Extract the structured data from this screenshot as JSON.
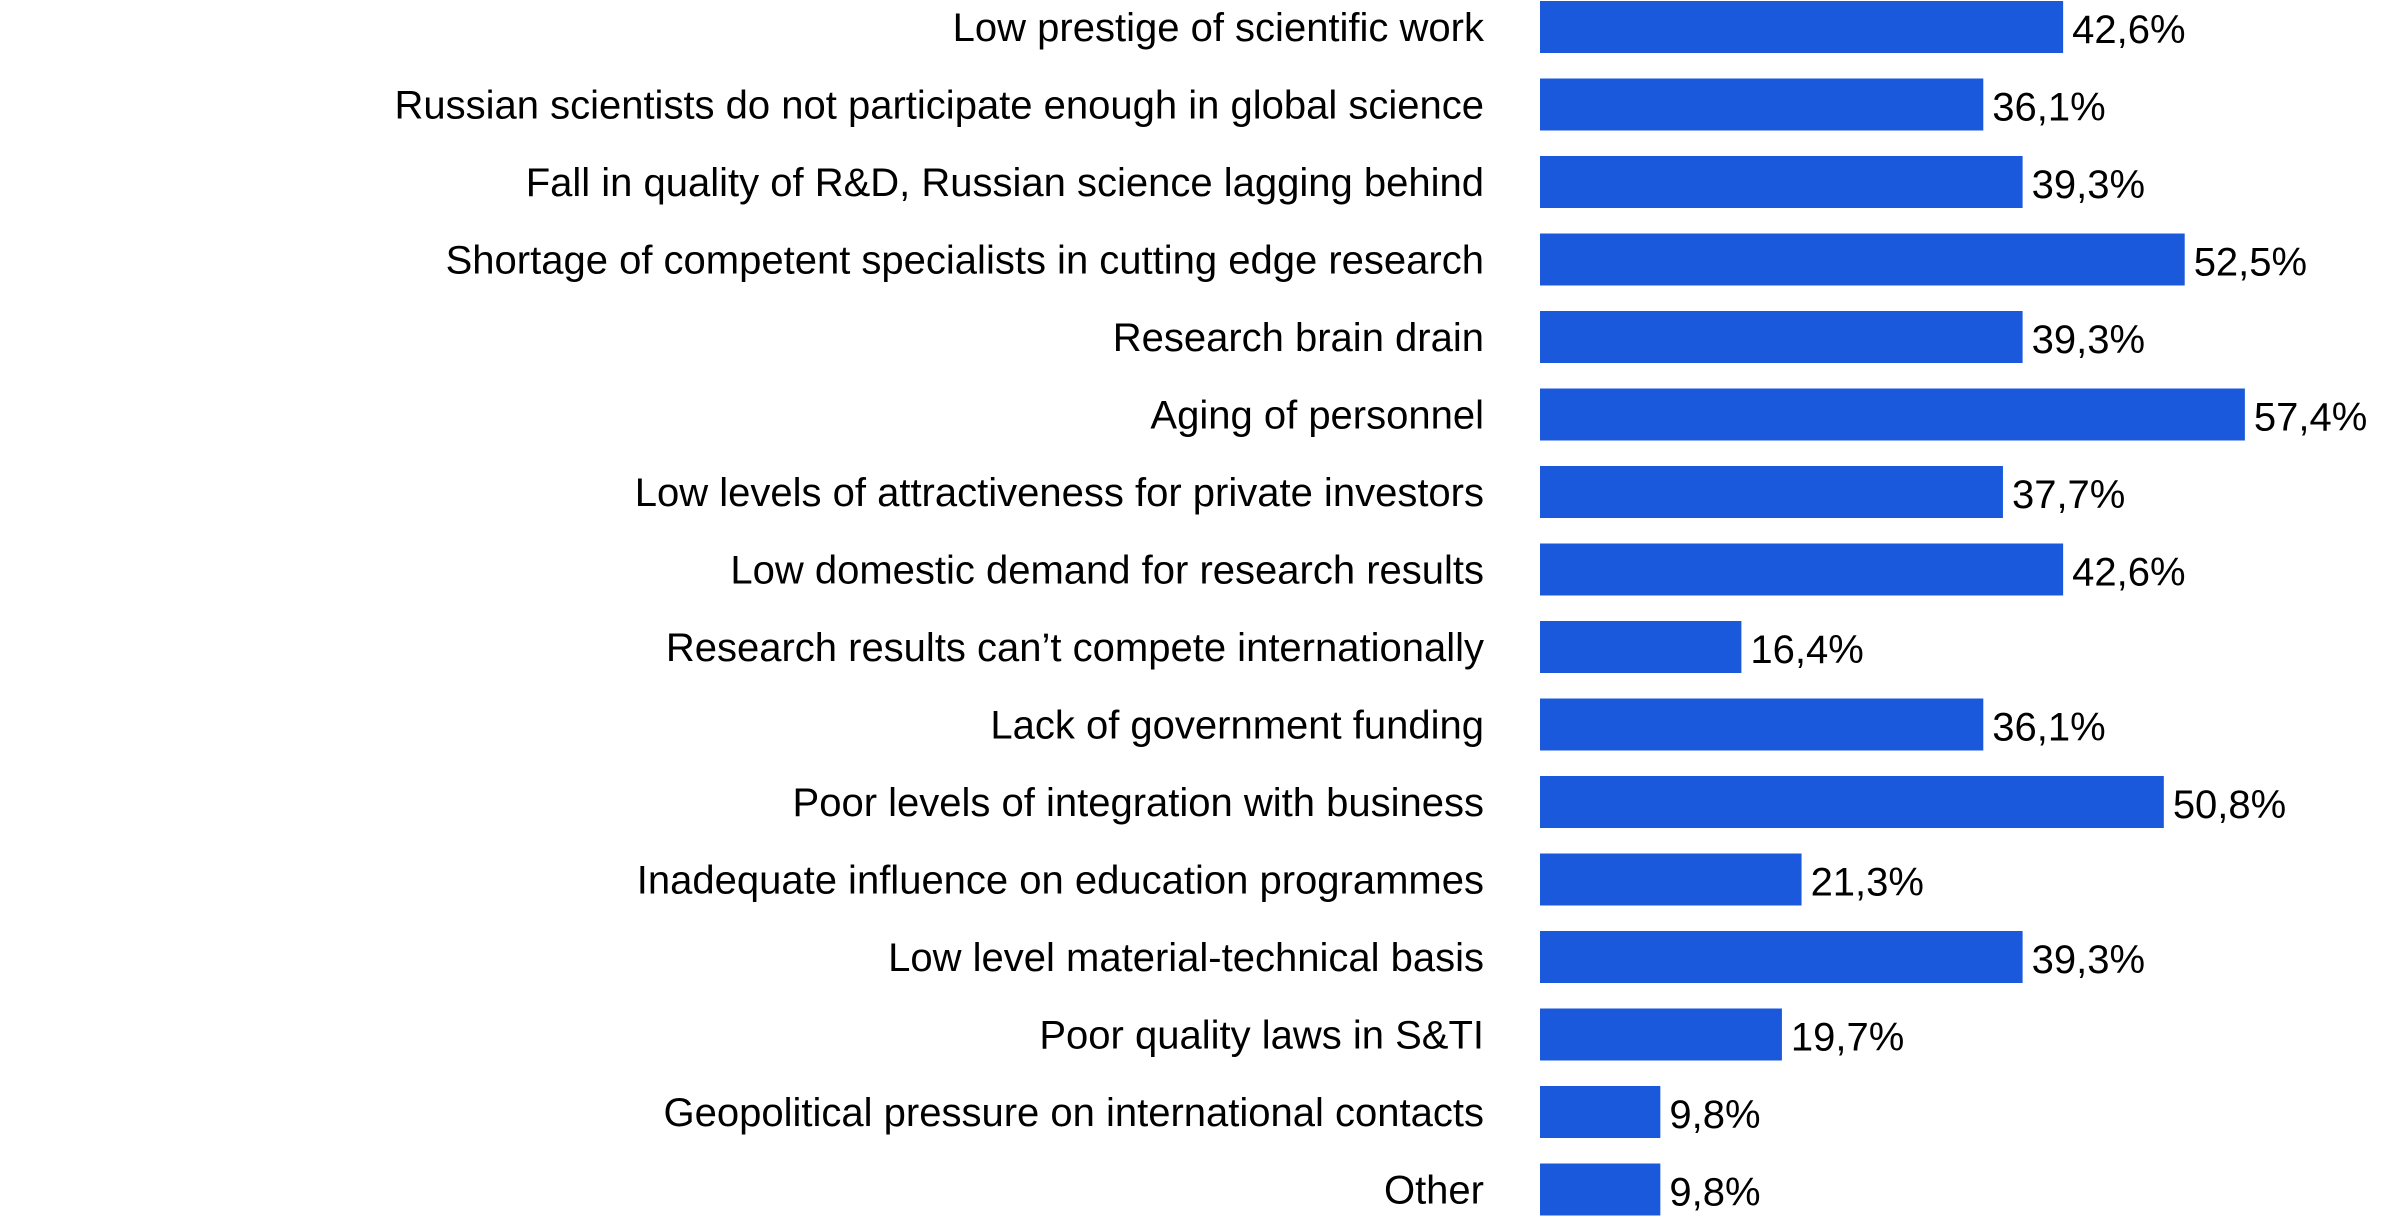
{
  "chart_data": {
    "type": "bar",
    "orientation": "horizontal",
    "title": "",
    "xlabel": "",
    "ylabel": "",
    "unit": "%",
    "decimal_separator": ",",
    "grid": false,
    "legend": "none",
    "bar_color": "#1a59db",
    "xlim": [
      0,
      60
    ],
    "categories": [
      "Low prestige of scientific work",
      "Russian scientists do not participate enough in global science",
      "Fall in quality of R&D, Russian science lagging behind",
      "Shortage of competent specialists in cutting edge research",
      "Research brain drain",
      "Aging of personnel",
      "Low levels of attractiveness for private investors",
      "Low domestic demand for research results",
      "Research results can’t compete internationally",
      "Lack of government funding",
      "Poor levels of integration with business",
      "Inadequate influence on education programmes",
      "Low level material-technical basis",
      "Poor quality laws in S&TI",
      "Geopolitical pressure on international contacts",
      "Other"
    ],
    "values": [
      42.6,
      36.1,
      39.3,
      52.5,
      39.3,
      57.4,
      37.7,
      42.6,
      16.4,
      36.1,
      50.8,
      21.3,
      39.3,
      19.7,
      9.8,
      9.8
    ],
    "value_labels": [
      "42,6%",
      "36,1%",
      "39,3%",
      "52,5%",
      "39,3%",
      "57,4%",
      "37,7%",
      "42,6%",
      "16,4%",
      "36,1%",
      "50,8%",
      "21,3%",
      "39,3%",
      "19,7%",
      "9,8%",
      "9,8%"
    ]
  }
}
